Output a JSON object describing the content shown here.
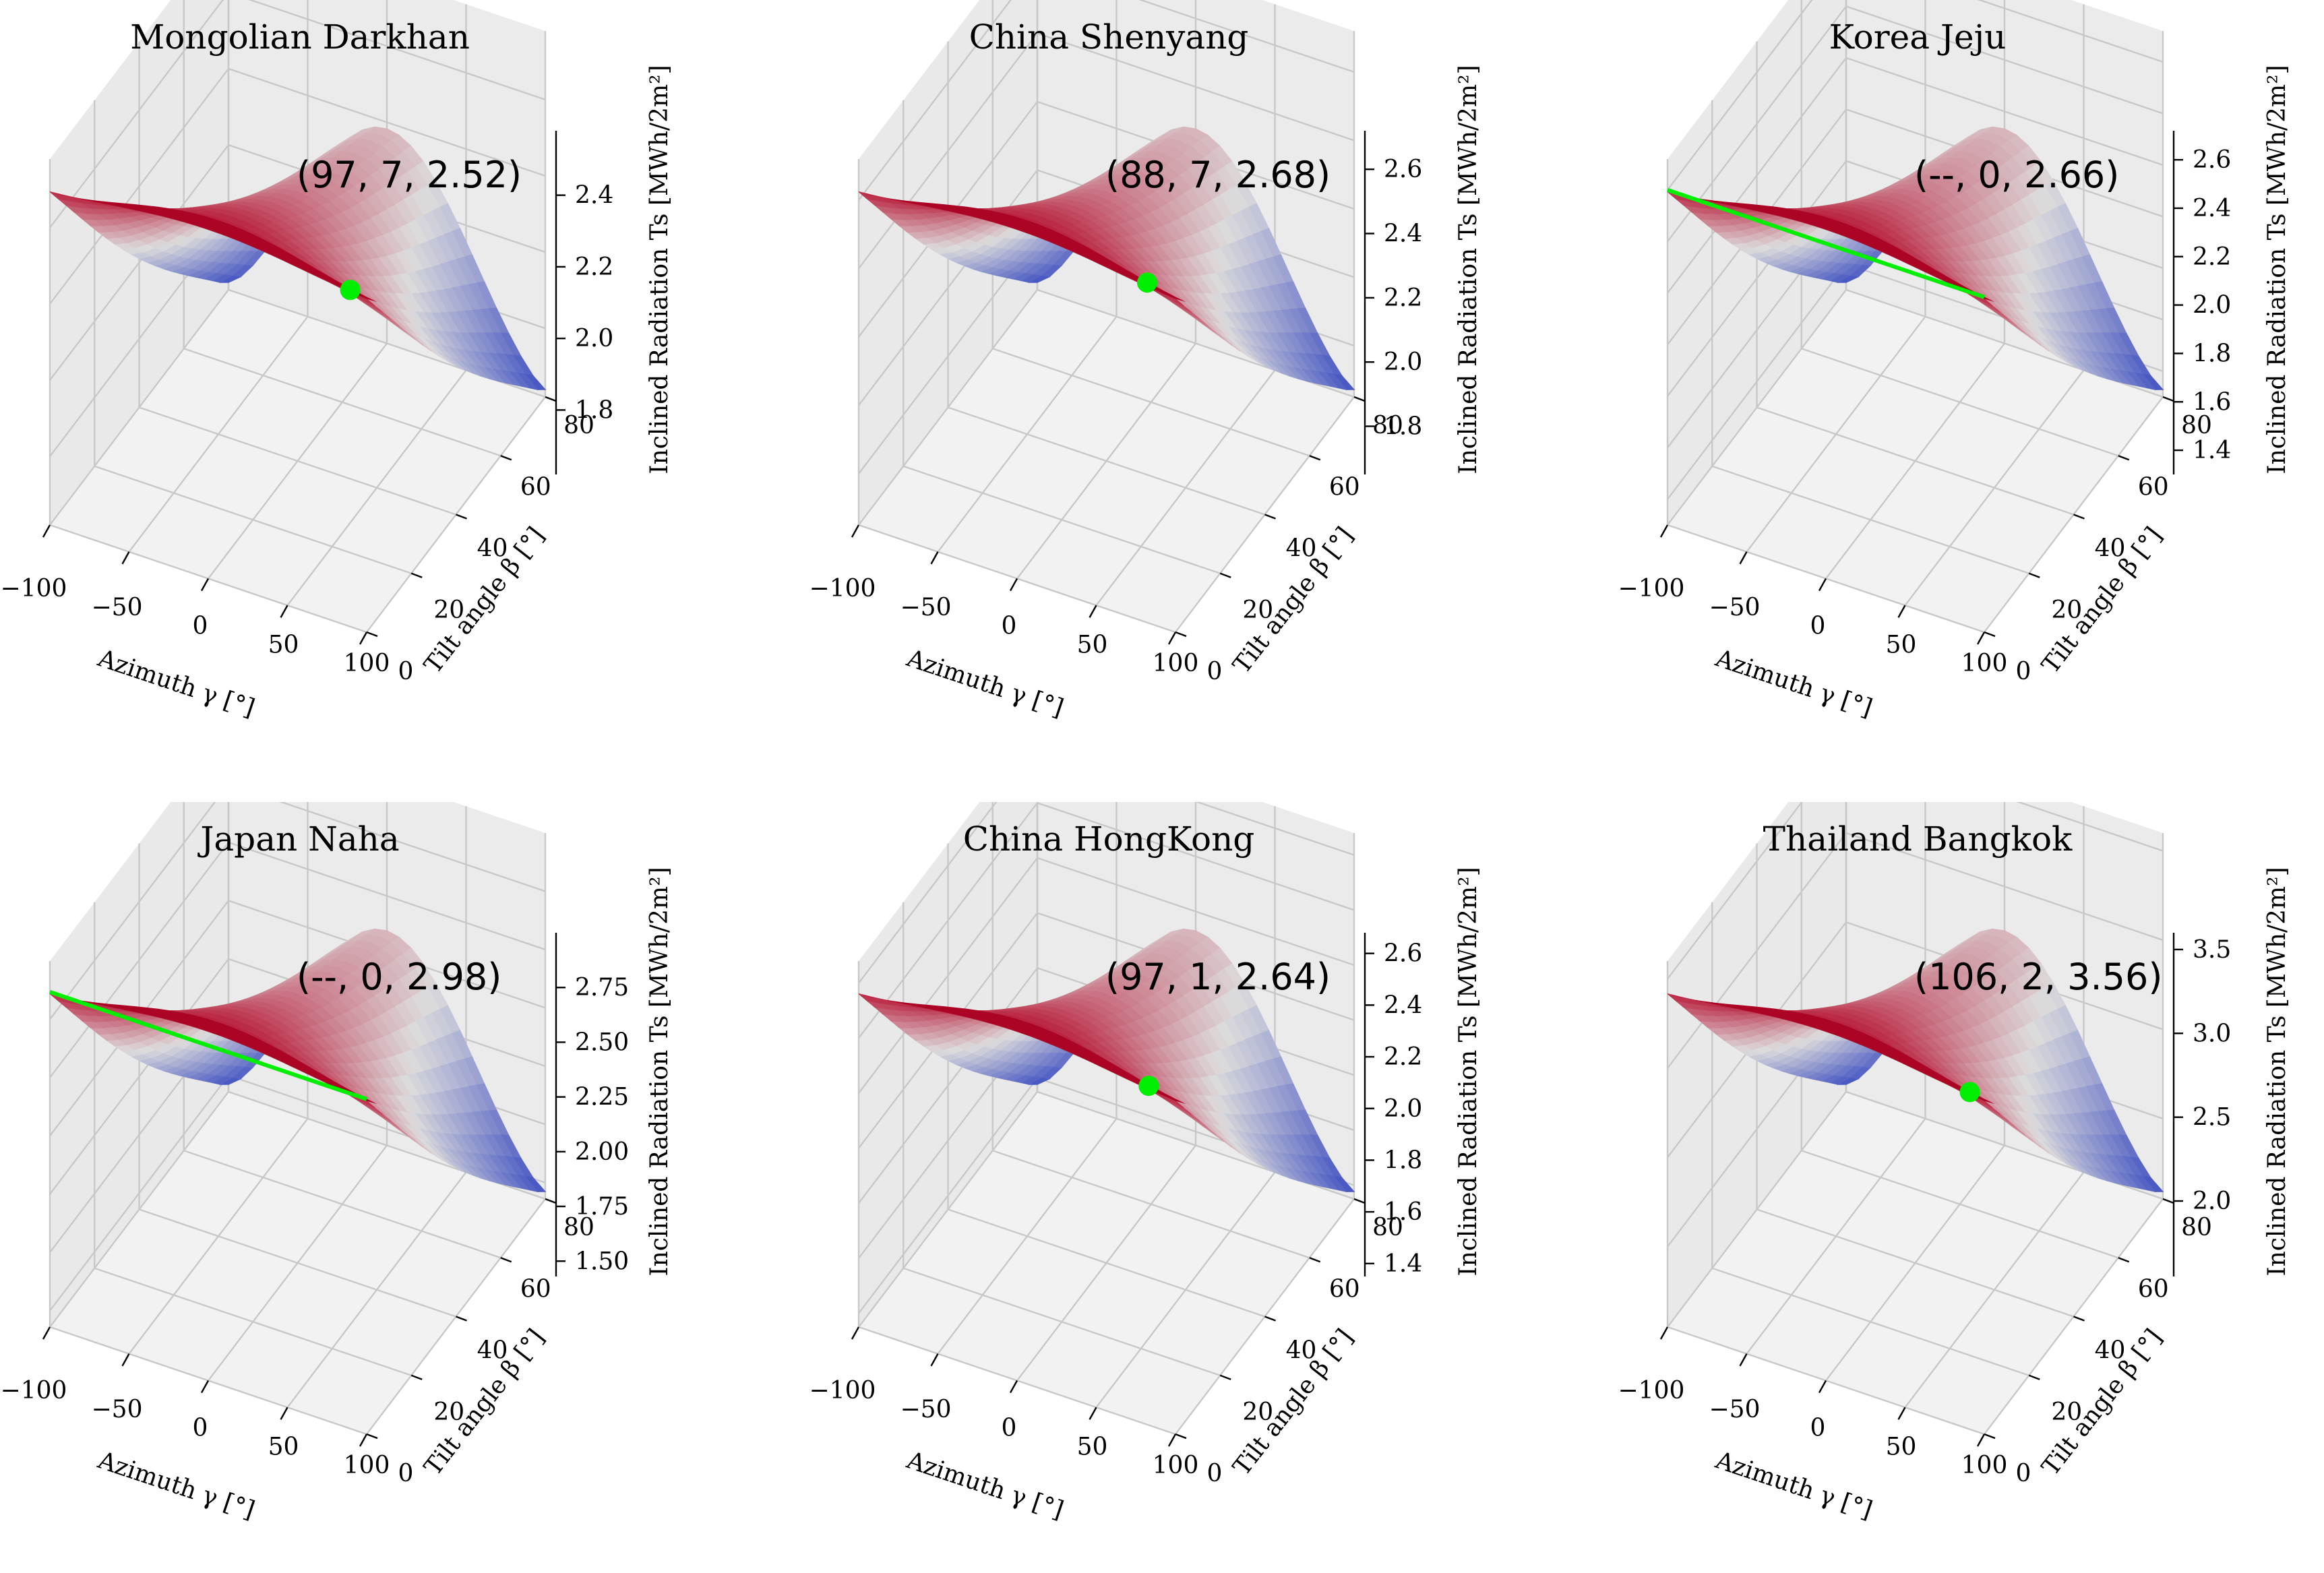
{
  "chart_data": [
    {
      "type": "surface3d",
      "title": "Mongolian Darkhan",
      "xlabel": "Azimuth γ [°]",
      "ylabel": "Tilt angle β [°]",
      "zlabel": "Inclined Radiation Ts [MWh/2m²]",
      "xticks": [
        "−100",
        "−50",
        "0",
        "50",
        "100"
      ],
      "yticks": [
        "0",
        "20",
        "40",
        "60",
        "80"
      ],
      "zticks": [
        "1.8",
        "2.0",
        "2.2",
        "2.4"
      ],
      "zlim": [
        1.62,
        2.58
      ],
      "optimum": {
        "label": "(97, 7, 2.52)",
        "azimuth": 97,
        "tilt": 7,
        "value": 2.52,
        "marker": "point"
      }
    },
    {
      "type": "surface3d",
      "title": "China Shenyang",
      "xlabel": "Azimuth γ [°]",
      "ylabel": "Tilt angle β [°]",
      "zlabel": "Inclined Radiation Ts [MWh/2m²]",
      "xticks": [
        "−100",
        "−50",
        "0",
        "50",
        "100"
      ],
      "yticks": [
        "0",
        "20",
        "40",
        "60",
        "80"
      ],
      "zticks": [
        "1.8",
        "2.0",
        "2.2",
        "2.4",
        "2.6"
      ],
      "zlim": [
        1.65,
        2.72
      ],
      "optimum": {
        "label": "(88, 7, 2.68)",
        "azimuth": 88,
        "tilt": 7,
        "value": 2.68,
        "marker": "point"
      }
    },
    {
      "type": "surface3d",
      "title": "Korea Jeju",
      "xlabel": "Azimuth γ [°]",
      "ylabel": "Tilt angle β [°]",
      "zlabel": "Inclined Radiation Ts [MWh/2m²]",
      "xticks": [
        "−100",
        "−50",
        "0",
        "50",
        "100"
      ],
      "yticks": [
        "0",
        "20",
        "40",
        "60",
        "80"
      ],
      "zticks": [
        "1.4",
        "1.6",
        "1.8",
        "2.0",
        "2.2",
        "2.4",
        "2.6"
      ],
      "zlim": [
        1.3,
        2.72
      ],
      "optimum": {
        "label": "(--, 0, 2.66)",
        "azimuth": null,
        "tilt": 0,
        "value": 2.66,
        "marker": "line"
      }
    },
    {
      "type": "surface3d",
      "title": "Japan Naha",
      "xlabel": "Azimuth γ [°]",
      "ylabel": "Tilt angle β [°]",
      "zlabel": "Inclined Radiation Ts [MWh/2m²]",
      "xticks": [
        "−100",
        "−50",
        "0",
        "50",
        "100"
      ],
      "yticks": [
        "0",
        "20",
        "40",
        "60",
        "80"
      ],
      "zticks": [
        "1.50",
        "1.75",
        "2.00",
        "2.25",
        "2.50",
        "2.75"
      ],
      "zlim": [
        1.43,
        3.0
      ],
      "optimum": {
        "label": "(--, 0, 2.98)",
        "azimuth": null,
        "tilt": 0,
        "value": 2.98,
        "marker": "line"
      }
    },
    {
      "type": "surface3d",
      "title": "China HongKong",
      "xlabel": "Azimuth γ [°]",
      "ylabel": "Tilt angle β [°]",
      "zlabel": "Inclined Radiation Ts [MWh/2m²]",
      "xticks": [
        "−100",
        "−50",
        "0",
        "50",
        "100"
      ],
      "yticks": [
        "0",
        "20",
        "40",
        "60",
        "80"
      ],
      "zticks": [
        "1.4",
        "1.6",
        "1.8",
        "2.0",
        "2.2",
        "2.4",
        "2.6"
      ],
      "zlim": [
        1.35,
        2.68
      ],
      "optimum": {
        "label": "(97, 1, 2.64)",
        "azimuth": 97,
        "tilt": 1,
        "value": 2.64,
        "marker": "point"
      }
    },
    {
      "type": "surface3d",
      "title": "Thailand Bangkok",
      "xlabel": "Azimuth γ [°]",
      "ylabel": "Tilt angle β [°]",
      "zlabel": "Inclined Radiation Ts [MWh/2m²]",
      "xticks": [
        "−100",
        "−50",
        "0",
        "50",
        "100"
      ],
      "yticks": [
        "0",
        "20",
        "40",
        "60",
        "80"
      ],
      "zticks": [
        "2.0",
        "2.5",
        "3.0",
        "3.5"
      ],
      "zlim": [
        1.55,
        3.6
      ],
      "optimum": {
        "label": "(106, 2, 3.56)",
        "azimuth": 106,
        "tilt": 2,
        "value": 3.56,
        "marker": "point"
      }
    }
  ],
  "colors": {
    "surface_high": "#b40426",
    "surface_mid": "#dddcdc",
    "surface_low": "#3b4cc0",
    "marker": "#00ee00",
    "pane": "#ebebeb",
    "grid": "#c8c8c8"
  }
}
